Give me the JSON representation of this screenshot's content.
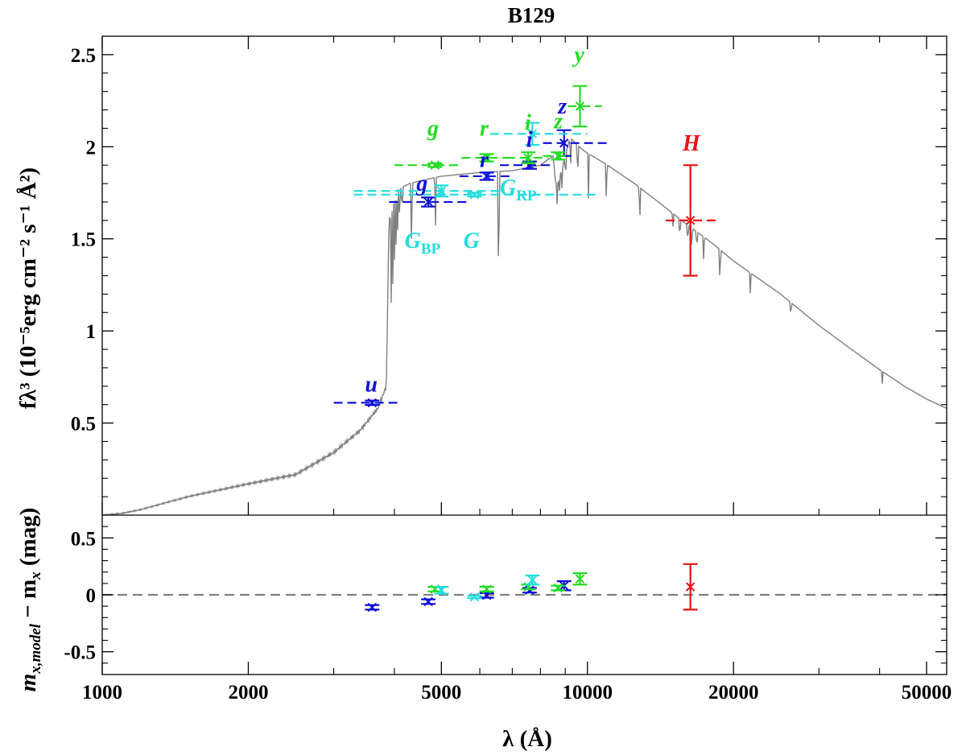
{
  "chart_data": {
    "type": "scatter",
    "title": "B129",
    "xlabel": "λ (Å)",
    "x_scale": "log",
    "xlim": [
      1000,
      55000
    ],
    "x_ticks": [
      {
        "value": 1000,
        "label": "1000"
      },
      {
        "value": 2000,
        "label": "2000"
      },
      {
        "value": 5000,
        "label": "5000"
      },
      {
        "value": 10000,
        "label": "10000"
      },
      {
        "value": 20000,
        "label": "20000"
      },
      {
        "value": 50000,
        "label": "50000"
      }
    ],
    "colors": {
      "sdss": "#1010d8",
      "ps1": "#22dd22",
      "gaia": "#22dddd",
      "twomass": "#ee1111",
      "model": "#808080",
      "zero": "#808080"
    },
    "top_panel": {
      "ylabel": "fλ³ (10⁻⁵erg cm⁻² s⁻¹ Å²)",
      "ylim": [
        0,
        2.6
      ],
      "y_ticks": [
        {
          "value": 0.5,
          "label": "0.5"
        },
        {
          "value": 1,
          "label": "1"
        },
        {
          "value": 1.5,
          "label": "1.5"
        },
        {
          "value": 2,
          "label": "2"
        },
        {
          "value": 2.5,
          "label": "2.5"
        }
      ],
      "model_spectrum": {
        "continuum": [
          [
            1000,
            0.0
          ],
          [
            1100,
            0.01
          ],
          [
            1200,
            0.03
          ],
          [
            1500,
            0.1
          ],
          [
            2000,
            0.17
          ],
          [
            2500,
            0.22
          ],
          [
            3000,
            0.34
          ],
          [
            3400,
            0.46
          ],
          [
            3700,
            0.58
          ],
          [
            3850,
            0.7
          ],
          [
            3900,
            1.6
          ],
          [
            4000,
            1.76
          ],
          [
            4300,
            1.8
          ],
          [
            4600,
            1.82
          ],
          [
            5000,
            1.84
          ],
          [
            6000,
            1.86
          ],
          [
            7000,
            1.87
          ],
          [
            8000,
            1.9
          ],
          [
            8500,
            1.95
          ],
          [
            8600,
            1.8
          ],
          [
            8800,
            1.85
          ],
          [
            9200,
            2.05
          ],
          [
            9800,
            1.98
          ],
          [
            11000,
            1.9
          ],
          [
            12500,
            1.8
          ],
          [
            14000,
            1.7
          ],
          [
            16000,
            1.58
          ],
          [
            18000,
            1.48
          ],
          [
            20000,
            1.38
          ],
          [
            25000,
            1.2
          ],
          [
            30000,
            1.03
          ],
          [
            35000,
            0.9
          ],
          [
            40000,
            0.79
          ],
          [
            45000,
            0.7
          ],
          [
            50000,
            0.63
          ],
          [
            55000,
            0.58
          ]
        ],
        "absorption_lines": [
          [
            3940,
            0.55
          ],
          [
            3970,
            0.5
          ],
          [
            4000,
            0.42
          ],
          [
            4030,
            0.35
          ],
          [
            4060,
            0.28
          ],
          [
            4100,
            0.2
          ],
          [
            4150,
            0.15
          ],
          [
            4340,
            0.4
          ],
          [
            4860,
            0.3
          ],
          [
            6560,
            0.75
          ],
          [
            8662,
            0.15
          ],
          [
            8750,
            0.1
          ],
          [
            8862,
            0.12
          ],
          [
            9015,
            0.15
          ],
          [
            9229,
            0.18
          ],
          [
            9546,
            0.2
          ],
          [
            10049,
            0.25
          ],
          [
            10938,
            0.22
          ],
          [
            12818,
            0.2
          ],
          [
            15000,
            0.08
          ],
          [
            15500,
            0.12
          ],
          [
            16100,
            0.1
          ],
          [
            16400,
            0.12
          ],
          [
            16800,
            0.1
          ],
          [
            17360,
            0.14
          ],
          [
            18750,
            0.2
          ],
          [
            21660,
            0.12
          ],
          [
            26250,
            0.08
          ],
          [
            40510,
            0.07
          ]
        ]
      },
      "photometry": [
        {
          "band": "u",
          "survey": "sdss",
          "wl": 3600,
          "f": 0.61,
          "err": 0.012,
          "wl_lo": 3000,
          "wl_hi": 4150
        },
        {
          "band": "g",
          "survey": "sdss",
          "wl": 4700,
          "f": 1.7,
          "err": 0.025,
          "wl_lo": 3900,
          "wl_hi": 5650
        },
        {
          "band": "r",
          "survey": "sdss",
          "wl": 6200,
          "f": 1.84,
          "err": 0.02,
          "wl_lo": 5450,
          "wl_hi": 6950
        },
        {
          "band": "i",
          "survey": "sdss",
          "wl": 7600,
          "f": 1.9,
          "err": 0.02,
          "wl_lo": 6600,
          "wl_hi": 8400
        },
        {
          "band": "z",
          "survey": "sdss",
          "wl": 8950,
          "f": 2.02,
          "err": 0.07,
          "wl_lo": 8100,
          "wl_hi": 11200
        },
        {
          "band": "g",
          "survey": "ps1",
          "wl": 4850,
          "f": 1.9,
          "err": 0.01,
          "wl_lo": 4000,
          "wl_hi": 5500
        },
        {
          "band": "r",
          "survey": "ps1",
          "wl": 6200,
          "f": 1.94,
          "err": 0.02,
          "wl_lo": 5500,
          "wl_hi": 7000
        },
        {
          "band": "i",
          "survey": "ps1",
          "wl": 7550,
          "f": 1.94,
          "err": 0.03,
          "wl_lo": 6800,
          "wl_hi": 8300
        },
        {
          "band": "z",
          "survey": "ps1",
          "wl": 8700,
          "f": 1.95,
          "err": 0.02,
          "wl_lo": 8100,
          "wl_hi": 9200
        },
        {
          "band": "y",
          "survey": "ps1",
          "wl": 9650,
          "f": 2.22,
          "err": 0.11,
          "wl_lo": 9100,
          "wl_hi": 10700
        },
        {
          "band": "G_BP",
          "survey": "gaia",
          "wl": 5000,
          "f": 1.76,
          "err": 0.03,
          "wl_lo": 3300,
          "wl_hi": 6700
        },
        {
          "band": "G",
          "survey": "gaia",
          "wl": 5850,
          "f": 1.74,
          "err": 0.01,
          "wl_lo": 3300,
          "wl_hi": 10500
        },
        {
          "band": "G_RP",
          "survey": "gaia",
          "wl": 7700,
          "f": 2.07,
          "err": 0.06,
          "wl_lo": 6300,
          "wl_hi": 10000
        },
        {
          "band": "H",
          "survey": "twomass",
          "wl": 16300,
          "f": 1.6,
          "err": 0.3,
          "wl_lo": 14500,
          "wl_hi": 18500
        }
      ],
      "labels": [
        {
          "text": "u",
          "survey": "sdss",
          "wl": 3480,
          "y": 0.67
        },
        {
          "text": "g",
          "survey": "sdss",
          "wl": 4440,
          "y": 1.76
        },
        {
          "text": "r",
          "survey": "sdss",
          "wl": 6000,
          "y": 1.89
        },
        {
          "text": "i",
          "survey": "sdss",
          "wl": 7480,
          "y": 2.0
        },
        {
          "text": "z",
          "survey": "sdss",
          "wl": 8700,
          "y": 2.18
        },
        {
          "text": "g",
          "survey": "ps1",
          "wl": 4680,
          "y": 2.06
        },
        {
          "text": "r",
          "survey": "ps1",
          "wl": 6000,
          "y": 2.06
        },
        {
          "text": "i",
          "survey": "ps1",
          "wl": 7430,
          "y": 2.09
        },
        {
          "text": "z",
          "survey": "ps1",
          "wl": 8530,
          "y": 2.1
        },
        {
          "text": "y",
          "survey": "ps1",
          "wl": 9400,
          "y": 2.46
        },
        {
          "text": "G",
          "sub": "BP",
          "survey": "gaia",
          "wl": 4200,
          "y": 1.45
        },
        {
          "text": "G",
          "survey": "gaia",
          "wl": 5550,
          "y": 1.45
        },
        {
          "text": "G",
          "sub": "RP",
          "survey": "gaia",
          "wl": 6600,
          "y": 1.74
        },
        {
          "text": "H",
          "survey": "twomass",
          "wl": 15700,
          "y": 1.98
        }
      ]
    },
    "bottom_panel": {
      "ylabel": "m",
      "ylabel_sub": "x,model",
      "ylabel_mid": " − m",
      "ylabel_sub2": "x",
      "ylabel_end": " (mag)",
      "ylim": [
        -0.7,
        0.7
      ],
      "y_ticks": [
        {
          "value": 0.5,
          "label": "0.5"
        },
        {
          "value": 0,
          "label": "0"
        },
        {
          "value": -0.5,
          "label": "-0.5"
        }
      ],
      "residuals": [
        {
          "band": "u",
          "survey": "sdss",
          "wl": 3600,
          "res": -0.11,
          "err": 0.02
        },
        {
          "band": "g",
          "survey": "sdss",
          "wl": 4700,
          "res": -0.06,
          "err": 0.02
        },
        {
          "band": "r",
          "survey": "sdss",
          "wl": 6200,
          "res": -0.005,
          "err": 0.02
        },
        {
          "band": "i",
          "survey": "sdss",
          "wl": 7600,
          "res": 0.04,
          "err": 0.02
        },
        {
          "band": "z",
          "survey": "sdss",
          "wl": 8950,
          "res": 0.08,
          "err": 0.04
        },
        {
          "band": "g",
          "survey": "ps1",
          "wl": 4850,
          "res": 0.05,
          "err": 0.02
        },
        {
          "band": "r",
          "survey": "ps1",
          "wl": 6200,
          "res": 0.05,
          "err": 0.02
        },
        {
          "band": "i",
          "survey": "ps1",
          "wl": 7550,
          "res": 0.07,
          "err": 0.02
        },
        {
          "band": "z",
          "survey": "ps1",
          "wl": 8700,
          "res": 0.06,
          "err": 0.02
        },
        {
          "band": "y",
          "survey": "ps1",
          "wl": 9650,
          "res": 0.14,
          "err": 0.05
        },
        {
          "band": "G_BP",
          "survey": "gaia",
          "wl": 5000,
          "res": 0.04,
          "err": 0.03
        },
        {
          "band": "G",
          "survey": "gaia",
          "wl": 5850,
          "res": -0.02,
          "err": 0.01
        },
        {
          "band": "G_RP",
          "survey": "gaia",
          "wl": 7700,
          "res": 0.13,
          "err": 0.04
        },
        {
          "band": "H",
          "survey": "twomass",
          "wl": 16300,
          "res": 0.07,
          "err": 0.2
        }
      ]
    }
  }
}
